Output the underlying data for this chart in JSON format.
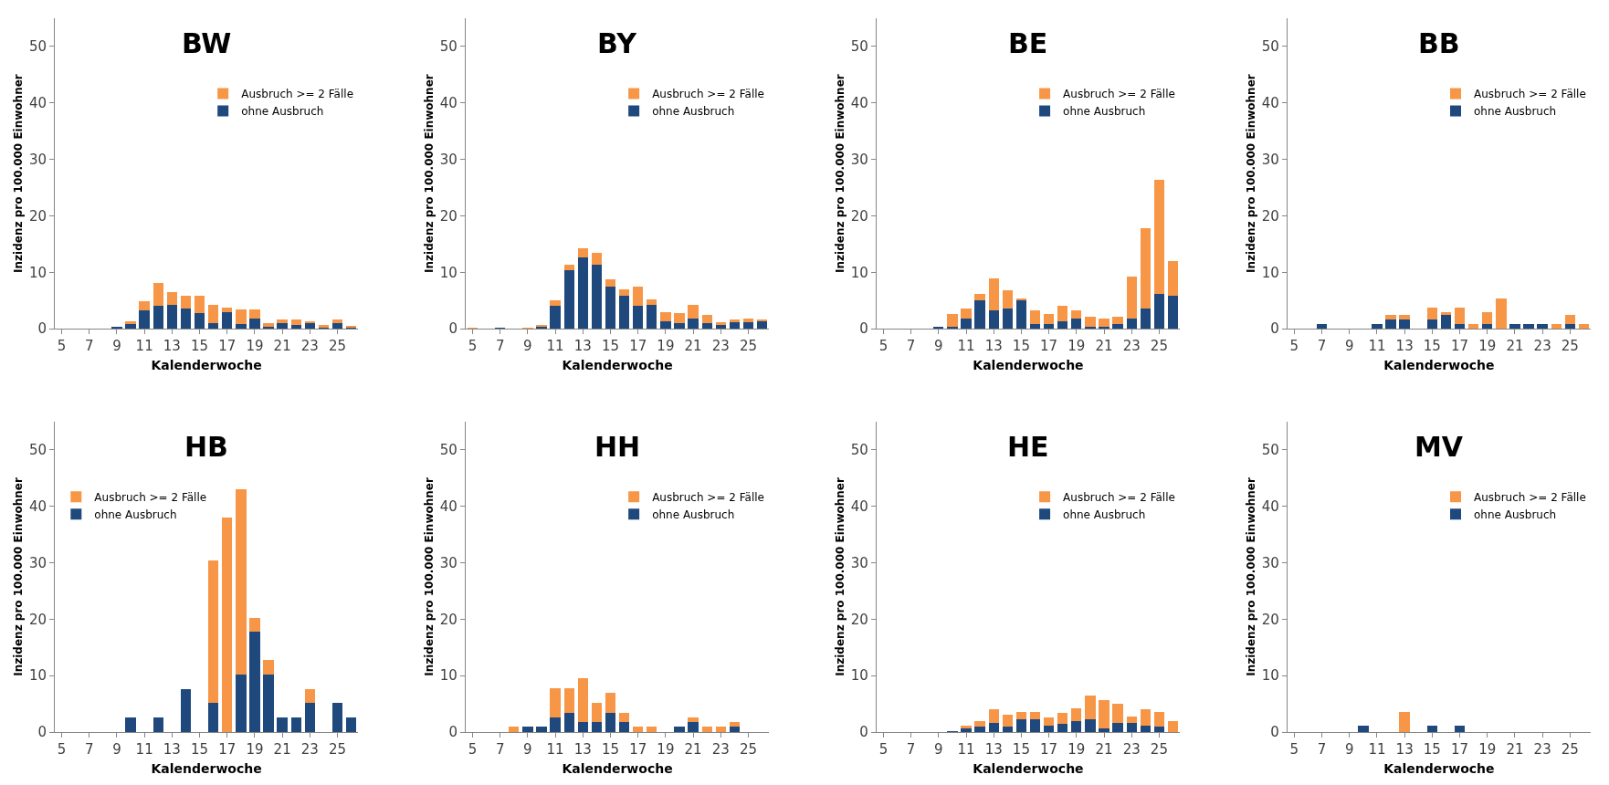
{
  "chart_data": [
    {
      "type": "bar",
      "stacked": true,
      "title": "BW",
      "xlabel": "Kalenderwoche",
      "ylabel": "Inzidenz pro 100.000 Einwohner",
      "legend": "top right",
      "grid": false,
      "ylim": [
        0,
        55
      ],
      "yticks": [
        0,
        10,
        20,
        30,
        40,
        50
      ],
      "categories": [
        "5",
        null,
        "7",
        null,
        "9",
        null,
        "11",
        null,
        "13",
        null,
        "15",
        null,
        "17",
        null,
        "19",
        null,
        "21",
        null,
        "23",
        null,
        "25",
        null
      ],
      "series": [
        {
          "name": "ohne Ausbruch",
          "color": "#1f497d",
          "values": [
            0,
            0,
            0,
            0,
            0.3,
            0.9,
            3.2,
            4.0,
            4.2,
            3.6,
            2.8,
            1.0,
            3.0,
            0.8,
            1.8,
            0.4,
            1.0,
            0.6,
            1.0,
            0.2,
            1.0,
            0.2
          ]
        },
        {
          "name": "Ausbruch >= 2 Fälle",
          "color": "#f79646",
          "values": [
            0,
            0,
            0,
            0,
            0,
            0.4,
            1.6,
            4.1,
            2.3,
            2.2,
            3.0,
            3.2,
            0.8,
            2.6,
            1.6,
            0.6,
            0.6,
            1.0,
            0.4,
            0.4,
            0.6,
            0.2
          ]
        }
      ]
    },
    {
      "type": "bar",
      "stacked": true,
      "title": "BY",
      "xlabel": "Kalenderwoche",
      "ylabel": "Inzidenz pro 100.000 Einwohner",
      "legend": "top right",
      "grid": false,
      "ylim": [
        0,
        55
      ],
      "yticks": [
        0,
        10,
        20,
        30,
        40,
        50
      ],
      "categories": [
        "5",
        null,
        "7",
        null,
        "9",
        null,
        "11",
        null,
        "13",
        null,
        "15",
        null,
        "17",
        null,
        "19",
        null,
        "21",
        null,
        "23",
        null,
        "25",
        null
      ],
      "series": [
        {
          "name": "ohne Ausbruch",
          "color": "#1f497d",
          "values": [
            0,
            0,
            0.2,
            0,
            0,
            0.4,
            4.0,
            10.4,
            12.6,
            11.4,
            7.4,
            5.8,
            4.0,
            4.2,
            1.4,
            1.0,
            1.8,
            1.0,
            0.6,
            1.2,
            1.2,
            1.4
          ]
        },
        {
          "name": "Ausbruch >= 2 Fälle",
          "color": "#f79646",
          "values": [
            0.2,
            0,
            0,
            0,
            0.2,
            0.2,
            1.0,
            1.0,
            1.6,
            2.0,
            1.4,
            1.2,
            3.4,
            1.0,
            1.6,
            1.8,
            2.4,
            1.4,
            0.6,
            0.4,
            0.6,
            0.2
          ]
        }
      ]
    },
    {
      "type": "bar",
      "stacked": true,
      "title": "BE",
      "xlabel": "Kalenderwoche",
      "ylabel": "Inzidenz pro 100.000 Einwohner",
      "legend": "top right",
      "grid": false,
      "ylim": [
        0,
        55
      ],
      "yticks": [
        0,
        10,
        20,
        30,
        40,
        50
      ],
      "categories": [
        "5",
        null,
        "7",
        null,
        "9",
        null,
        "11",
        null,
        "13",
        null,
        "15",
        null,
        "17",
        null,
        "19",
        null,
        "21",
        null,
        "23",
        null,
        "25",
        null
      ],
      "series": [
        {
          "name": "ohne Ausbruch",
          "color": "#1f497d",
          "values": [
            0,
            0,
            0,
            0,
            0.4,
            0.4,
            1.8,
            5.0,
            3.2,
            3.6,
            5.0,
            0.8,
            0.8,
            1.4,
            1.8,
            0.4,
            0.4,
            0.8,
            1.8,
            3.6,
            6.2,
            5.8
          ]
        },
        {
          "name": "Ausbruch >= 2 Fälle",
          "color": "#f79646",
          "values": [
            0,
            0,
            0,
            0,
            0,
            2.2,
            1.8,
            1.2,
            5.8,
            3.2,
            0.4,
            2.4,
            1.8,
            2.6,
            1.4,
            1.8,
            1.4,
            1.4,
            7.4,
            14.2,
            20.2,
            6.2
          ]
        }
      ]
    },
    {
      "type": "bar",
      "stacked": true,
      "title": "BB",
      "xlabel": "Kalenderwoche",
      "ylabel": "Inzidenz pro 100.000 Einwohner",
      "legend": "top right",
      "grid": false,
      "ylim": [
        0,
        55
      ],
      "yticks": [
        0,
        10,
        20,
        30,
        40,
        50
      ],
      "categories": [
        "5",
        null,
        "7",
        null,
        "9",
        null,
        "11",
        null,
        "13",
        null,
        "15",
        null,
        "17",
        null,
        "19",
        null,
        "21",
        null,
        "23",
        null,
        "25",
        null
      ],
      "series": [
        {
          "name": "ohne Ausbruch",
          "color": "#1f497d",
          "values": [
            0,
            0,
            0.8,
            0,
            0,
            0,
            0.8,
            1.6,
            1.6,
            0,
            1.6,
            2.4,
            0.8,
            0,
            0.8,
            0,
            0.8,
            0.8,
            0.8,
            0,
            0.8,
            0
          ]
        },
        {
          "name": "Ausbruch >= 2 Fälle",
          "color": "#f79646",
          "values": [
            0,
            0,
            0,
            0,
            0,
            0,
            0,
            0.8,
            0.8,
            0,
            2.2,
            0.6,
            3.0,
            0.8,
            2.2,
            5.4,
            0,
            0,
            0,
            0.8,
            1.6,
            0.8
          ]
        }
      ]
    },
    {
      "type": "bar",
      "stacked": true,
      "title": "HB",
      "xlabel": "Kalenderwoche",
      "ylabel": "Inzidenz pro 100.000 Einwohner",
      "legend": "top left",
      "grid": false,
      "ylim": [
        0,
        55
      ],
      "yticks": [
        0,
        10,
        20,
        30,
        40,
        50
      ],
      "categories": [
        "5",
        null,
        "7",
        null,
        "9",
        null,
        "11",
        null,
        "13",
        null,
        "15",
        null,
        "17",
        null,
        "19",
        null,
        "21",
        null,
        "23",
        null,
        "25",
        null
      ],
      "series": [
        {
          "name": "ohne Ausbruch",
          "color": "#1f497d",
          "values": [
            0,
            0,
            0,
            0,
            0,
            2.6,
            0,
            2.6,
            0,
            7.6,
            0,
            5.2,
            0,
            10.2,
            17.8,
            10.2,
            2.6,
            2.6,
            5.2,
            0,
            5.2,
            2.6
          ]
        },
        {
          "name": "Ausbruch >= 2 Fälle",
          "color": "#f79646",
          "values": [
            0,
            0,
            0,
            0,
            0,
            0,
            0,
            0,
            0,
            0,
            0,
            25.2,
            38.0,
            32.8,
            2.4,
            2.5,
            0,
            0,
            2.4,
            0,
            0,
            0
          ]
        }
      ]
    },
    {
      "type": "bar",
      "stacked": true,
      "title": "HH",
      "xlabel": "Kalenderwoche",
      "ylabel": "Inzidenz pro 100.000 Einwohner",
      "legend": "top right",
      "grid": false,
      "ylim": [
        0,
        55
      ],
      "yticks": [
        0,
        10,
        20,
        30,
        40,
        50
      ],
      "categories": [
        "5",
        null,
        "7",
        null,
        "9",
        null,
        "11",
        null,
        "13",
        null,
        "15",
        null,
        "17",
        null,
        "19",
        null,
        "21",
        null,
        "23",
        null,
        "25",
        null
      ],
      "series": [
        {
          "name": "ohne Ausbruch",
          "color": "#1f497d",
          "values": [
            0,
            0,
            0,
            0,
            0.9,
            0.9,
            2.6,
            3.4,
            1.8,
            1.8,
            3.4,
            1.8,
            0,
            0,
            0,
            0.9,
            1.8,
            0,
            0,
            0.9,
            0,
            0
          ]
        },
        {
          "name": "Ausbruch >= 2 Fälle",
          "color": "#f79646",
          "values": [
            0,
            0,
            0,
            0.9,
            0,
            0,
            5.1,
            4.3,
            7.7,
            3.4,
            3.5,
            1.6,
            0.9,
            0.9,
            0,
            0,
            0.8,
            0.9,
            0.9,
            0.9,
            0,
            0
          ]
        }
      ]
    },
    {
      "type": "bar",
      "stacked": true,
      "title": "HE",
      "xlabel": "Kalenderwoche",
      "ylabel": "Inzidenz pro 100.000 Einwohner",
      "legend": "top right",
      "grid": false,
      "ylim": [
        0,
        55
      ],
      "yticks": [
        0,
        10,
        20,
        30,
        40,
        50
      ],
      "categories": [
        "5",
        null,
        "7",
        null,
        "9",
        null,
        "11",
        null,
        "13",
        null,
        "15",
        null,
        "17",
        null,
        "19",
        null,
        "21",
        null,
        "23",
        null,
        "25",
        null
      ],
      "series": [
        {
          "name": "ohne Ausbruch",
          "color": "#1f497d",
          "values": [
            0,
            0,
            0,
            0,
            0,
            0.2,
            0.6,
            0.9,
            1.6,
            0.9,
            2.2,
            2.2,
            1.2,
            1.4,
            2.0,
            2.2,
            0.6,
            1.6,
            1.6,
            1.2,
            0.9,
            0
          ]
        },
        {
          "name": "Ausbruch >= 2 Fälle",
          "color": "#f79646",
          "values": [
            0,
            0,
            0,
            0,
            0,
            0,
            0.6,
            1.1,
            2.4,
            2.1,
            1.4,
            1.4,
            1.4,
            2.0,
            2.2,
            4.2,
            5.0,
            3.4,
            1.2,
            2.8,
            2.7,
            2.0
          ]
        }
      ]
    },
    {
      "type": "bar",
      "stacked": true,
      "title": "MV",
      "xlabel": "Kalenderwoche",
      "ylabel": "Inzidenz pro 100.000 Einwohner",
      "legend": "top right",
      "grid": false,
      "ylim": [
        0,
        55
      ],
      "yticks": [
        0,
        10,
        20,
        30,
        40,
        50
      ],
      "categories": [
        "5",
        null,
        "7",
        null,
        "9",
        null,
        "11",
        null,
        "13",
        null,
        "15",
        null,
        "17",
        null,
        "19",
        null,
        "21",
        null,
        "23",
        null,
        "25",
        null
      ],
      "series": [
        {
          "name": "ohne Ausbruch",
          "color": "#1f497d",
          "values": [
            0,
            0,
            0,
            0,
            0,
            1.2,
            0,
            0,
            0,
            0,
            1.2,
            0,
            1.2,
            0,
            0,
            0,
            0,
            0,
            0,
            0,
            0,
            0
          ]
        },
        {
          "name": "Ausbruch >= 2 Fälle",
          "color": "#f79646",
          "values": [
            0,
            0,
            0,
            0,
            0,
            0,
            0,
            0,
            3.6,
            0,
            0,
            0,
            0,
            0,
            0,
            0,
            0,
            0,
            0,
            0,
            0,
            0
          ]
        }
      ]
    }
  ]
}
